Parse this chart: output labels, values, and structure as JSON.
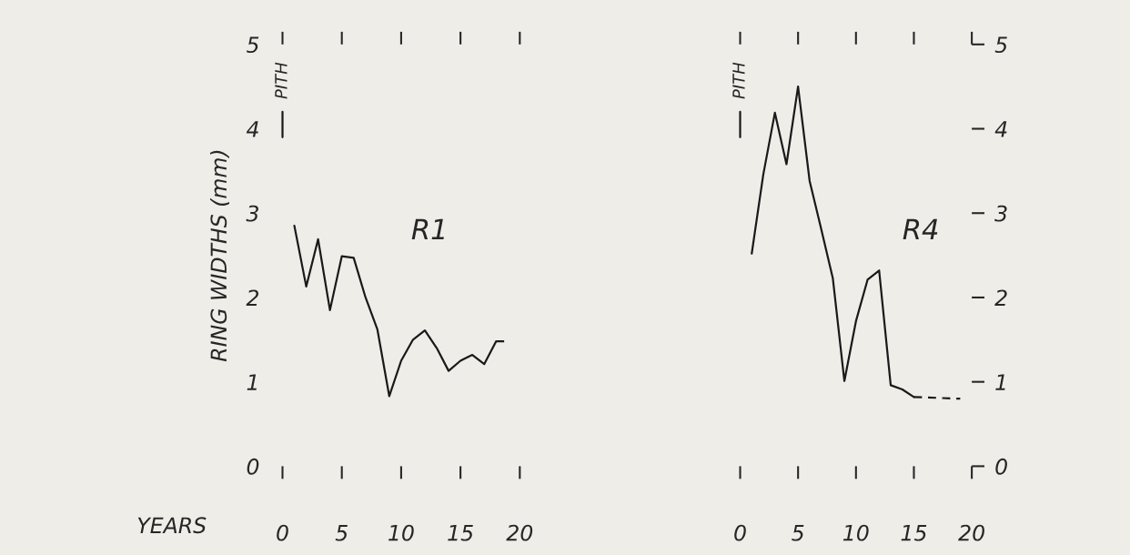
{
  "chart_data": [
    {
      "type": "line",
      "title": "R1",
      "xlabel": "YEARS",
      "ylabel": "RING WIDTHS (mm)",
      "xlim": [
        0,
        20
      ],
      "xticks": [
        0,
        5,
        10,
        15,
        20
      ],
      "ylim": [
        0,
        5
      ],
      "yticks": [
        0,
        1,
        2,
        3,
        4,
        5
      ],
      "grid": false,
      "legend": false,
      "marker": "none",
      "series": [
        {
          "color": "#1a1a1a",
          "line_style": "solid",
          "x": [
            1,
            2,
            3,
            4,
            5,
            6,
            7,
            8,
            9,
            10,
            11,
            12,
            13,
            14,
            15,
            16,
            17,
            18
          ],
          "values": [
            2.85,
            2.13,
            2.69,
            1.85,
            2.49,
            2.47,
            2.0,
            1.62,
            0.83,
            1.25,
            1.5,
            1.61,
            1.4,
            1.13,
            1.25,
            1.32,
            1.21,
            1.48
          ]
        },
        {
          "color": "#1a1a1a",
          "line_style": "dashed",
          "x": [
            18,
            19
          ],
          "values": [
            1.48,
            1.48
          ]
        }
      ],
      "annotations": [
        "PITH"
      ]
    },
    {
      "type": "line",
      "title": "R4",
      "xlim": [
        0,
        20
      ],
      "xticks": [
        0,
        5,
        10,
        15,
        20
      ],
      "y2lim": [
        0,
        5
      ],
      "y2ticks": [
        0,
        1,
        2,
        3,
        4,
        5
      ],
      "grid": false,
      "legend": false,
      "marker": "none",
      "series": [
        {
          "color": "#1a1a1a",
          "line_style": "solid",
          "axis": "y2",
          "x": [
            1,
            2,
            3,
            4,
            5,
            6,
            7,
            8,
            9,
            10,
            11,
            12,
            13,
            14,
            15
          ],
          "values": [
            2.52,
            3.46,
            4.19,
            3.58,
            4.5,
            3.38,
            2.81,
            2.23,
            1.01,
            1.72,
            2.21,
            2.32,
            0.96,
            0.91,
            0.82
          ]
        },
        {
          "color": "#1a1a1a",
          "line_style": "dashed",
          "axis": "y2",
          "x": [
            15,
            19
          ],
          "values": [
            0.82,
            0.8
          ]
        }
      ],
      "annotations": [
        "PITH"
      ]
    }
  ]
}
